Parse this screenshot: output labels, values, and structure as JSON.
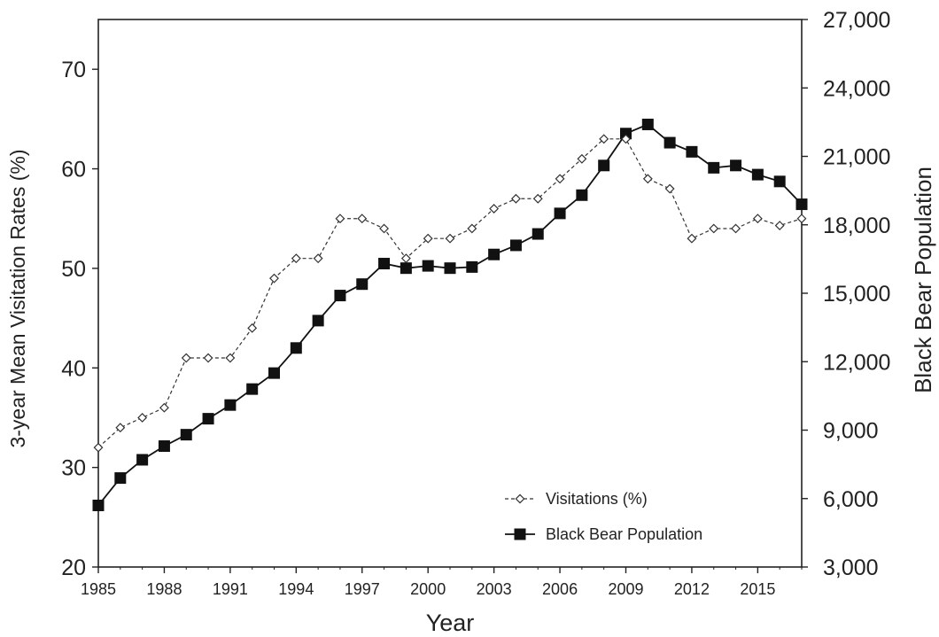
{
  "chart_data": {
    "type": "line",
    "title": "",
    "xlabel": "Year",
    "ylabel_left": "3-year Mean Visitation Rates (%)",
    "ylabel_right": "Black Bear Population",
    "xlim": [
      1985,
      2017
    ],
    "ylim_left": [
      20,
      75
    ],
    "ylim_right": [
      3000,
      27000
    ],
    "x_ticks": [
      1985,
      1988,
      1991,
      1994,
      1997,
      2000,
      2003,
      2006,
      2009,
      2012,
      2015
    ],
    "y_left_ticks": [
      20,
      30,
      40,
      50,
      60,
      70
    ],
    "y_right_ticks": [
      3000,
      6000,
      9000,
      12000,
      15000,
      18000,
      21000,
      24000,
      27000
    ],
    "y_right_tick_labels": [
      "3,000",
      "6,000",
      "9,000",
      "12,000",
      "15,000",
      "18,000",
      "21,000",
      "24,000",
      "27,000"
    ],
    "grid": false,
    "legend_position": "bottom-right",
    "x": [
      1985,
      1986,
      1987,
      1988,
      1989,
      1990,
      1991,
      1992,
      1993,
      1994,
      1995,
      1996,
      1997,
      1998,
      1999,
      2000,
      2001,
      2002,
      2003,
      2004,
      2005,
      2006,
      2007,
      2008,
      2009,
      2010,
      2011,
      2012,
      2013,
      2014,
      2015,
      2016,
      2017
    ],
    "series": [
      {
        "name": "Visitations (%)",
        "axis": "left",
        "marker": "open-diamond",
        "line_style": "dashed",
        "values": [
          32,
          34,
          35,
          36,
          41,
          41,
          41,
          44,
          49,
          51,
          51,
          55,
          55,
          54,
          51,
          53,
          53,
          54,
          56,
          57,
          57,
          59,
          61,
          63,
          63,
          59,
          58,
          53,
          54,
          54,
          55,
          54.3,
          55
        ]
      },
      {
        "name": "Black Bear Population",
        "axis": "right",
        "marker": "filled-square",
        "line_style": "solid",
        "values": [
          5700,
          6900,
          7700,
          8300,
          8800,
          9500,
          10100,
          10800,
          11500,
          12600,
          13800,
          14900,
          15400,
          16300,
          16100,
          16200,
          16100,
          16150,
          16700,
          17100,
          17600,
          18500,
          19300,
          20600,
          22000,
          22400,
          21600,
          21200,
          20500,
          20600,
          20200,
          19900,
          18900
        ]
      }
    ]
  },
  "colors": {
    "axis": "#222222",
    "visitation_series": "#333333",
    "population_series": "#111111",
    "background": "#ffffff"
  }
}
